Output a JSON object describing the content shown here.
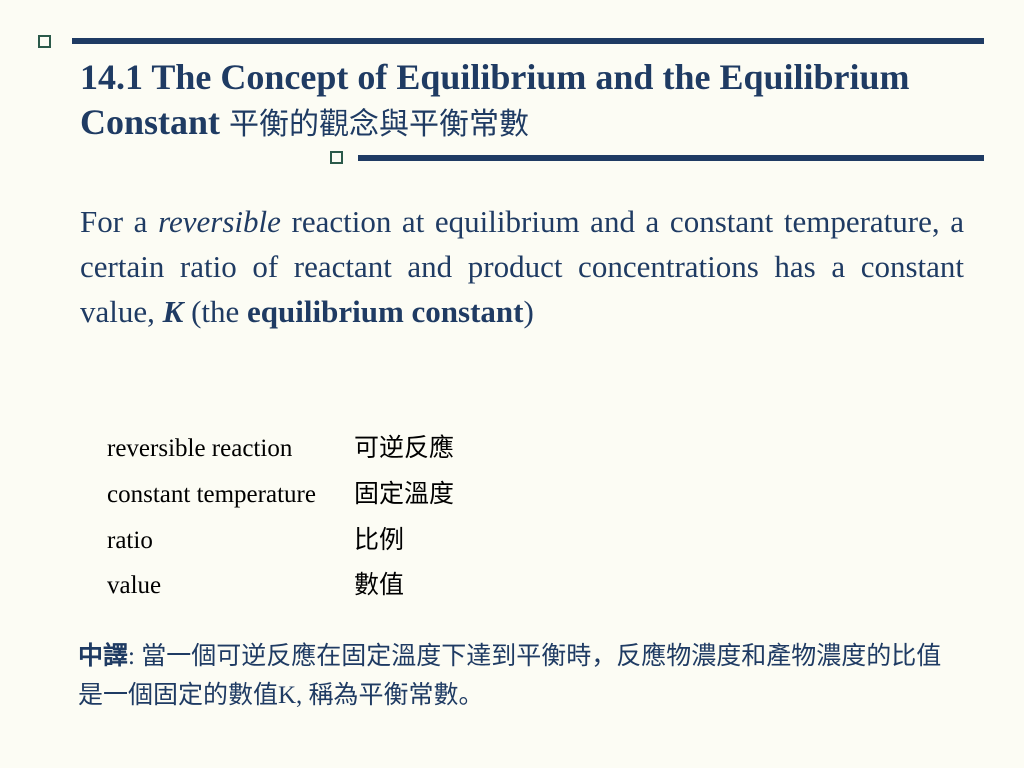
{
  "colors": {
    "background": "#fcfcf4",
    "primary": "#1f3b63",
    "deco": "#2b5a4a",
    "text_body": "#000000"
  },
  "title": {
    "en": "14.1 The Concept of Equilibrium and the Equilibrium Constant",
    "zh": "平衡的觀念與平衡常數",
    "fontsize": 36
  },
  "paragraph": {
    "prefix": "For a ",
    "italic1": "reversible",
    "mid": " reaction at equilibrium and a constant temperature, a certain ratio of reactant and product concentrations has a constant value, ",
    "k": "K",
    "mid2": " (the ",
    "bold": "equilibrium constant",
    "suffix": ")",
    "fontsize": 31
  },
  "vocab": {
    "fontsize": 25,
    "rows": [
      {
        "en": "reversible reaction",
        "zh": "可逆反應"
      },
      {
        "en": "constant temperature",
        "zh": "固定溫度"
      },
      {
        "en": "ratio",
        "zh": "比例"
      },
      {
        "en": "value",
        "zh": "數值"
      }
    ]
  },
  "translation": {
    "label": "中譯",
    "text": ": 當一個可逆反應在固定溫度下達到平衡時，反應物濃度和產物濃度的比值是一個固定的數值K, 稱為平衡常數。",
    "fontsize": 25
  }
}
